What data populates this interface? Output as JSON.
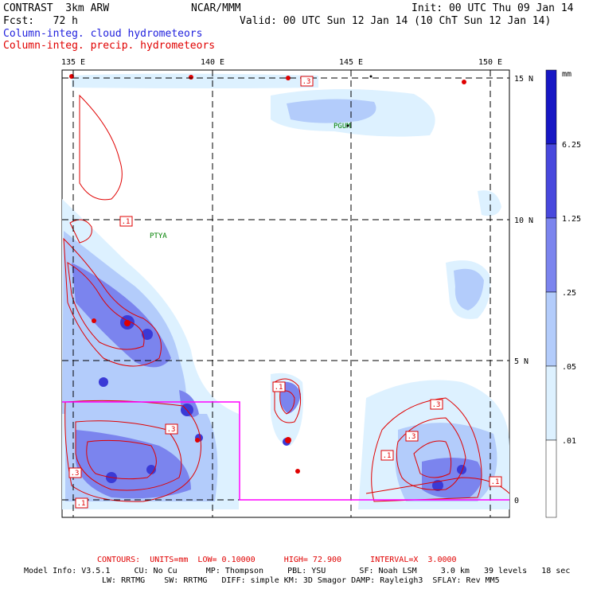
{
  "header": {
    "title": "CONTRAST  3km ARW",
    "org": "NCAR/MMM",
    "init": "Init: 00 UTC Thu 09 Jan 14",
    "fcst": "Fcst:   72 h",
    "valid": "Valid: 00 UTC Sun 12 Jan 14 (10 ChT Sun 12 Jan 14)",
    "field_cloud": "Column-integ. cloud hydrometeors",
    "field_precip": "Column-integ. precip. hydrometeors"
  },
  "map": {
    "lon_labels": [
      "135 E",
      "140 E",
      "145 E",
      "150 E"
    ],
    "lat_labels": [
      "15 N",
      "10 N",
      "5 N",
      "0"
    ],
    "place_labels": [
      "PGUM",
      "PTYA"
    ],
    "contour_labels": [
      ".3",
      ".1",
      ".1",
      ".3",
      ".3",
      ".3",
      ".1",
      ".1",
      ".3",
      ".1"
    ],
    "colors": {
      "cloud_shades": [
        "#ffffff",
        "#ddf1ff",
        "#b3ccfb",
        "#7b84ee",
        "#4848dd",
        "#1717c4"
      ],
      "precip_contour": "#e00000",
      "box": "#ff00ff",
      "place_label": "#008000"
    }
  },
  "colorbar": {
    "unit": "mm",
    "labels": [
      "6.25",
      "1.25",
      ".25",
      ".05",
      ".01"
    ]
  },
  "footer": {
    "contours": "CONTOURS:  UNITS=mm  LOW= 0.10000      HIGH= 72.900      INTERVAL=X  3.0000",
    "model_line1": "Model Info: V3.5.1     CU: No Cu      MP: Thompson     PBL: YSU       SF: Noah LSM     3.0 km   39 levels   18 sec",
    "model_line2": "LW: RRTMG    SW: RRTMG   DIFF: simple KM: 3D Smagor DAMP: Rayleigh3  SFLAY: Rev MM5"
  }
}
